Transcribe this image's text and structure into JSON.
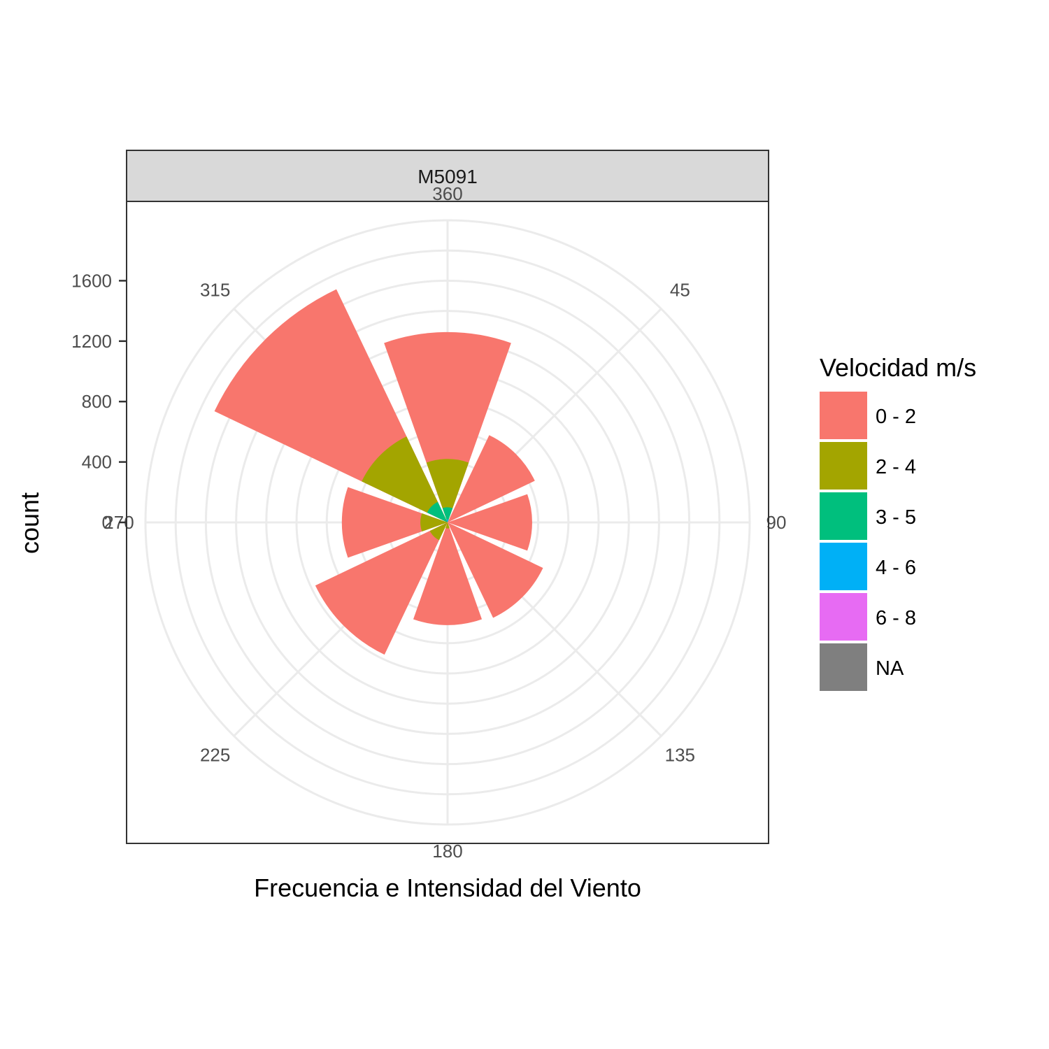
{
  "chart_data": {
    "type": "bar",
    "coord": "polar",
    "facet_label": "M5091",
    "xlabel": "Frecuencia e Intensidad del Viento",
    "ylabel": "count",
    "angle_ticks": [
      "360",
      "45",
      "90",
      "135",
      "180",
      "225",
      "270",
      "315"
    ],
    "radial_ticks": [
      "0",
      "400",
      "800",
      "1200",
      "1600"
    ],
    "radial_tick_values": [
      0,
      400,
      800,
      1200,
      1600
    ],
    "radial_grid_values": [
      200,
      400,
      600,
      800,
      1000,
      1200,
      1400,
      1600,
      1800,
      2000
    ],
    "ylim": [
      0,
      2000
    ],
    "grid": true,
    "legend": {
      "title": "Velocidad m/s",
      "position": "right",
      "items": [
        {
          "label": "0 - 2",
          "color": "#F8766D"
        },
        {
          "label": "2 - 4",
          "color": "#A3A500"
        },
        {
          "label": "3 - 5",
          "color": "#00BF7D"
        },
        {
          "label": "4 - 6",
          "color": "#00B0F6"
        },
        {
          "label": "6 - 8",
          "color": "#E76BF3"
        },
        {
          "label": "NA",
          "color": "#7F7F7F"
        }
      ]
    },
    "categories": [
      "0",
      "45",
      "90",
      "135",
      "180",
      "225",
      "270",
      "315"
    ],
    "series": [
      {
        "name": "6 - 8",
        "color": "#E76BF3",
        "values": [
          0,
          0,
          0,
          0,
          0,
          0,
          0,
          0
        ]
      },
      {
        "name": "4 - 6",
        "color": "#00B0F6",
        "values": [
          20,
          0,
          0,
          0,
          0,
          0,
          0,
          0
        ]
      },
      {
        "name": "3 - 5",
        "color": "#00BF7D",
        "values": [
          80,
          0,
          0,
          0,
          0,
          0,
          0,
          150
        ]
      },
      {
        "name": "2 - 4",
        "color": "#A3A500",
        "values": [
          320,
          0,
          0,
          0,
          40,
          130,
          180,
          480
        ]
      },
      {
        "name": "0 - 2",
        "color": "#F8766D",
        "values": [
          840,
          640,
          560,
          700,
          640,
          840,
          520,
          1080
        ]
      }
    ]
  }
}
